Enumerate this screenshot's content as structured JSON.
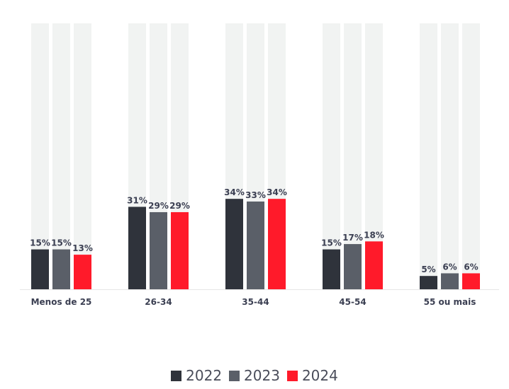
{
  "chart_data": {
    "type": "bar",
    "categories": [
      "Menos de 25",
      "26-34",
      "35-44",
      "45-54",
      "55 ou mais"
    ],
    "series": [
      {
        "name": "2022",
        "color": "#2f333b",
        "values": [
          15,
          31,
          34,
          15,
          5
        ],
        "labels": [
          "15%",
          "31%",
          "34%",
          "15%",
          "5%"
        ]
      },
      {
        "name": "2023",
        "color": "#5a5f68",
        "values": [
          15,
          29,
          33,
          17,
          6
        ],
        "labels": [
          "15%",
          "29%",
          "33%",
          "17%",
          "6%"
        ]
      },
      {
        "name": "2024",
        "color": "#ff1a2a",
        "values": [
          13,
          29,
          34,
          18,
          6
        ],
        "labels": [
          "13%",
          "29%",
          "34%",
          "18%",
          "6%"
        ]
      }
    ],
    "ylim": [
      0,
      100
    ],
    "background_track_color": "#f1f3f2",
    "legend_position": "bottom",
    "grid": false
  }
}
